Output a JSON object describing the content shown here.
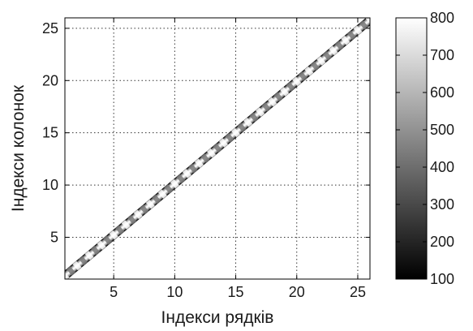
{
  "chart_data": {
    "type": "heatmap",
    "title": "",
    "xlabel": "Індекси рядків",
    "ylabel": "Індекси колонок",
    "xlim": [
      1,
      26
    ],
    "ylim": [
      1,
      26
    ],
    "xticks": [
      "5",
      "10",
      "15",
      "20",
      "25"
    ],
    "yticks": [
      "5",
      "10",
      "15",
      "20",
      "25"
    ],
    "grid": true,
    "colormap": "gray",
    "clim": [
      100,
      800
    ],
    "colorbar_ticks": [
      "100",
      "200",
      "300",
      "400",
      "500",
      "600",
      "700",
      "800"
    ],
    "colorbar_position": "right",
    "band_center": {
      "x": [
        1,
        26
      ],
      "y": [
        1.3,
        25.8
      ]
    },
    "band_halfwidth": 0.45,
    "band_profile": {
      "offset": [
        -0.45,
        -0.35,
        -0.25,
        -0.1,
        0.0,
        0.1,
        0.25,
        0.35,
        0.45
      ],
      "value": [
        150,
        320,
        560,
        720,
        780,
        720,
        560,
        320,
        150
      ]
    },
    "ridge_period": 0.5
  }
}
